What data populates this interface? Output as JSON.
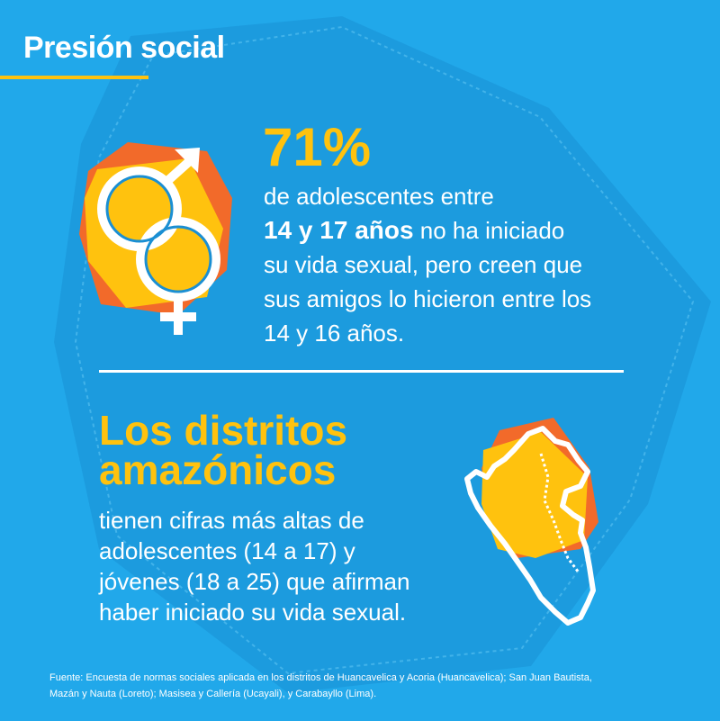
{
  "title": "Presión social",
  "stat": {
    "number": "71%",
    "line1": "de adolescentes entre",
    "bold": "14 y 17 años",
    "line2_rest": " no ha iniciado",
    "line3": "su vida sexual, pero creen que",
    "line4": "sus amigos lo hicieron entre los",
    "line5": "14 y 16 años."
  },
  "headline": {
    "line1": "Los distritos",
    "line2": "amazónicos"
  },
  "description": {
    "line1": "tienen cifras más altas de",
    "line2": "adolescentes (14 a 17) y",
    "line3": "jóvenes (18 a 25) que afirman",
    "line4": "haber iniciado su vida sexual."
  },
  "footnote": {
    "line1": "Fuente: Encuesta de normas sociales aplicada en los distritos de Huancavelica y Acoria (Huancavelica); San Juan Bautista,",
    "line2": "Mazán y Nauta (Loreto); Masisea y Callería (Ucayali), y Carabayllo (Lima)."
  },
  "colors": {
    "background": "#21a8ea",
    "hexagon": "#1a8fd3",
    "accent_yellow": "#ffc20e",
    "accent_orange": "#f26a2a",
    "text": "#ffffff"
  },
  "icons": [
    "hexagon-shape",
    "gender-symbols-icon",
    "peru-map-icon"
  ]
}
